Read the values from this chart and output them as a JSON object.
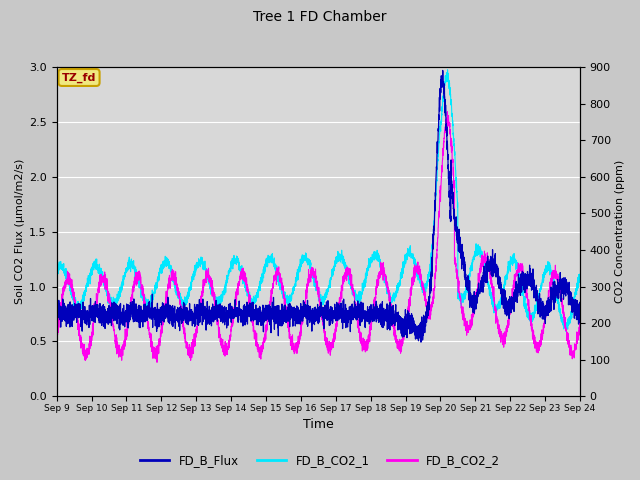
{
  "title": "Tree 1 FD Chamber",
  "xlabel": "Time",
  "ylabel_left": "Soil CO2 Flux (μmol/m2/s)",
  "ylabel_right": "CO2 Concentration (ppm)",
  "ylim_left": [
    0.0,
    3.0
  ],
  "ylim_right": [
    0,
    900
  ],
  "yticks_left": [
    0.0,
    0.5,
    1.0,
    1.5,
    2.0,
    2.5,
    3.0
  ],
  "yticks_right": [
    0,
    100,
    200,
    300,
    400,
    500,
    600,
    700,
    800,
    900
  ],
  "xtick_labels": [
    "Sep 9",
    "Sep 10",
    "Sep 11",
    "Sep 12",
    "Sep 13",
    "Sep 14",
    "Sep 15",
    "Sep 16",
    "Sep 17",
    "Sep 18",
    "Sep 19",
    "Sep 20",
    "Sep 21",
    "Sep 22",
    "Sep 23",
    "Sep 24"
  ],
  "color_flux": "#0000bb",
  "color_co2_1": "#00e8ff",
  "color_co2_2": "#ff00ee",
  "fig_bg": "#c8c8c8",
  "plot_bg": "#d8d8d8",
  "tag_text": "TZ_fd",
  "tag_bg": "#f0e880",
  "tag_border": "#c8a000",
  "tag_text_color": "#990000",
  "legend_labels": [
    "FD_B_Flux",
    "FD_B_CO2_1",
    "FD_B_CO2_2"
  ],
  "n_days": 15,
  "n_points": 4000
}
